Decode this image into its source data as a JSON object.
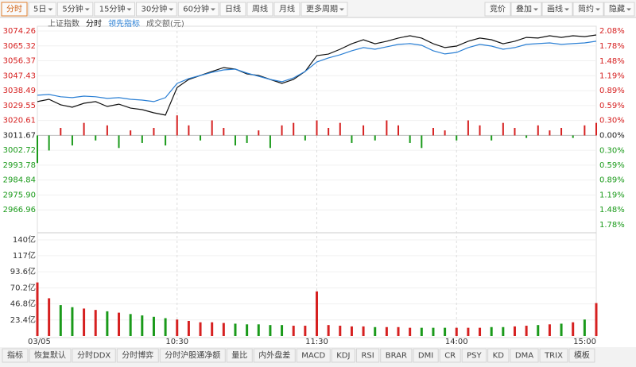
{
  "toolbar": {
    "left": [
      "分时",
      "5日",
      "5分钟",
      "15分钟",
      "30分钟",
      "60分钟",
      "日线",
      "周线",
      "月线",
      "更多周期"
    ],
    "right": [
      "竞价",
      "叠加",
      "画线",
      "简约",
      "隐藏"
    ]
  },
  "chart_data": {
    "type": "line",
    "title": "上证指数",
    "volume_title": "成交额(元)",
    "x": [
      0,
      5,
      10,
      15,
      20,
      25,
      30,
      35,
      40,
      45,
      50,
      55,
      60,
      65,
      70,
      75,
      80,
      85,
      90,
      95,
      100,
      105,
      110,
      115,
      120,
      125,
      130,
      135,
      140,
      145,
      150,
      155,
      160,
      165,
      170,
      175,
      180,
      185,
      190,
      195,
      200,
      205,
      210,
      215,
      220,
      225,
      230,
      235,
      240
    ],
    "xlim": [
      0,
      240
    ],
    "xticks": [
      {
        "value": 0,
        "label": "03/05"
      },
      {
        "value": 60,
        "label": "10:30"
      },
      {
        "value": 120,
        "label": "11:30"
      },
      {
        "value": 180,
        "label": "14:00"
      },
      {
        "value": 240,
        "label": "15:00"
      }
    ],
    "series": [
      {
        "name": "分时",
        "color": "#111111",
        "values": [
          3031.9,
          3033.3,
          3030.0,
          3028.5,
          3030.9,
          3031.9,
          3029.0,
          3030.4,
          3028.0,
          3027.1,
          3025.2,
          3023.8,
          3040.4,
          3045.2,
          3047.6,
          3050.0,
          3052.3,
          3051.4,
          3048.5,
          3047.6,
          3045.2,
          3042.8,
          3045.2,
          3050.0,
          3059.5,
          3060.4,
          3063.3,
          3066.6,
          3069.0,
          3066.6,
          3068.1,
          3070.0,
          3071.4,
          3070.0,
          3066.6,
          3064.3,
          3065.2,
          3068.1,
          3070.0,
          3069.0,
          3066.6,
          3068.1,
          3070.4,
          3070.0,
          3071.4,
          3070.4,
          3071.4,
          3070.9,
          3071.9
        ]
      },
      {
        "name": "领先指标",
        "color": "#2a7fd4",
        "values": [
          3035.7,
          3036.2,
          3034.8,
          3034.3,
          3035.2,
          3034.8,
          3033.8,
          3034.3,
          3033.3,
          3032.8,
          3031.9,
          3034.3,
          3042.8,
          3045.7,
          3047.6,
          3049.5,
          3050.9,
          3051.4,
          3049.0,
          3047.1,
          3045.2,
          3043.8,
          3046.1,
          3050.0,
          3055.7,
          3058.1,
          3060.0,
          3062.4,
          3064.3,
          3063.3,
          3064.8,
          3066.2,
          3066.7,
          3065.7,
          3062.4,
          3060.5,
          3061.4,
          3064.3,
          3066.2,
          3065.2,
          3063.3,
          3064.3,
          3066.2,
          3066.7,
          3067.1,
          3066.2,
          3066.7,
          3067.1,
          3068.1
        ]
      }
    ],
    "diff_values": [
      -0.55,
      -0.3,
      0.15,
      -0.2,
      0.25,
      -0.1,
      0.2,
      -0.25,
      0.1,
      -0.15,
      0.15,
      -0.2,
      0.4,
      0.2,
      -0.1,
      0.3,
      0.15,
      -0.2,
      -0.15,
      0.1,
      -0.25,
      0.2,
      0.25,
      -0.1,
      0.3,
      0.15,
      0.25,
      -0.15,
      0.2,
      -0.1,
      0.3,
      0.2,
      -0.15,
      -0.25,
      0.15,
      0.1,
      -0.1,
      0.3,
      0.2,
      -0.1,
      0.25,
      0.15,
      -0.05,
      0.2,
      0.1,
      0.15,
      -0.05,
      0.2,
      0.25
    ],
    "volume": [
      78,
      55,
      45,
      42,
      40,
      38,
      36,
      34,
      32,
      30,
      28,
      26,
      24,
      22,
      20,
      20,
      19,
      18,
      17,
      17,
      16,
      16,
      15,
      15,
      65,
      16,
      15,
      14,
      14,
      13,
      13,
      13,
      12,
      12,
      12,
      12,
      12,
      12,
      12,
      13,
      13,
      14,
      15,
      16,
      17,
      18,
      20,
      24,
      48
    ],
    "ylim": [
      2958.01,
      3074.26
    ],
    "yticks": [
      3074.26,
      3065.32,
      3056.37,
      3047.43,
      3038.49,
      3029.55,
      3020.61,
      3011.67,
      3002.72,
      2993.78,
      2984.84,
      {
        "value": 2975.9,
        "label": "2975.90"
      },
      2966.96
    ],
    "y2lim": [
      -1.78,
      2.08
    ],
    "y2ticks": [
      {
        "value": 2.08,
        "label": "2.08%"
      },
      {
        "value": 1.78,
        "label": "1.78%"
      },
      {
        "value": 1.48,
        "label": "1.48%"
      },
      {
        "value": 1.19,
        "label": "1.19%"
      },
      {
        "value": 0.89,
        "label": "0.89%"
      },
      {
        "value": 0.59,
        "label": "0.59%"
      },
      {
        "value": 0.3,
        "label": "0.30%"
      },
      {
        "value": 0,
        "label": "0.00%"
      },
      {
        "value": -0.3,
        "label": "0.30%"
      },
      {
        "value": -0.59,
        "label": "0.59%"
      },
      {
        "value": -0.89,
        "label": "0.89%"
      },
      {
        "value": -1.19,
        "label": "1.19%"
      },
      {
        "value": -1.48,
        "label": "1.48%"
      },
      {
        "value": -1.78,
        "label": "1.78%"
      }
    ],
    "vlim": [
      0,
      140
    ],
    "vticks": [
      {
        "value": 140,
        "label": "140亿"
      },
      {
        "value": 117,
        "label": "117亿"
      },
      {
        "value": 93.6,
        "label": "93.6亿"
      },
      {
        "value": 70.2,
        "label": "70.2亿"
      },
      {
        "value": 46.8,
        "label": "46.8亿"
      },
      {
        "value": 23.4,
        "label": "23.4亿"
      }
    ],
    "up_color": "#d62020",
    "down_color": "#1a9a1a",
    "grid": true
  },
  "bottom_tabs": [
    "指标",
    "恢复默认",
    "分时DDX",
    "分时博弈",
    "分时沪股通净额",
    "量比",
    "内外盘差",
    "MACD",
    "KDJ",
    "RSI",
    "BRAR",
    "DMI",
    "CR",
    "PSY",
    "KD",
    "DMA",
    "TRIX",
    "模板"
  ]
}
